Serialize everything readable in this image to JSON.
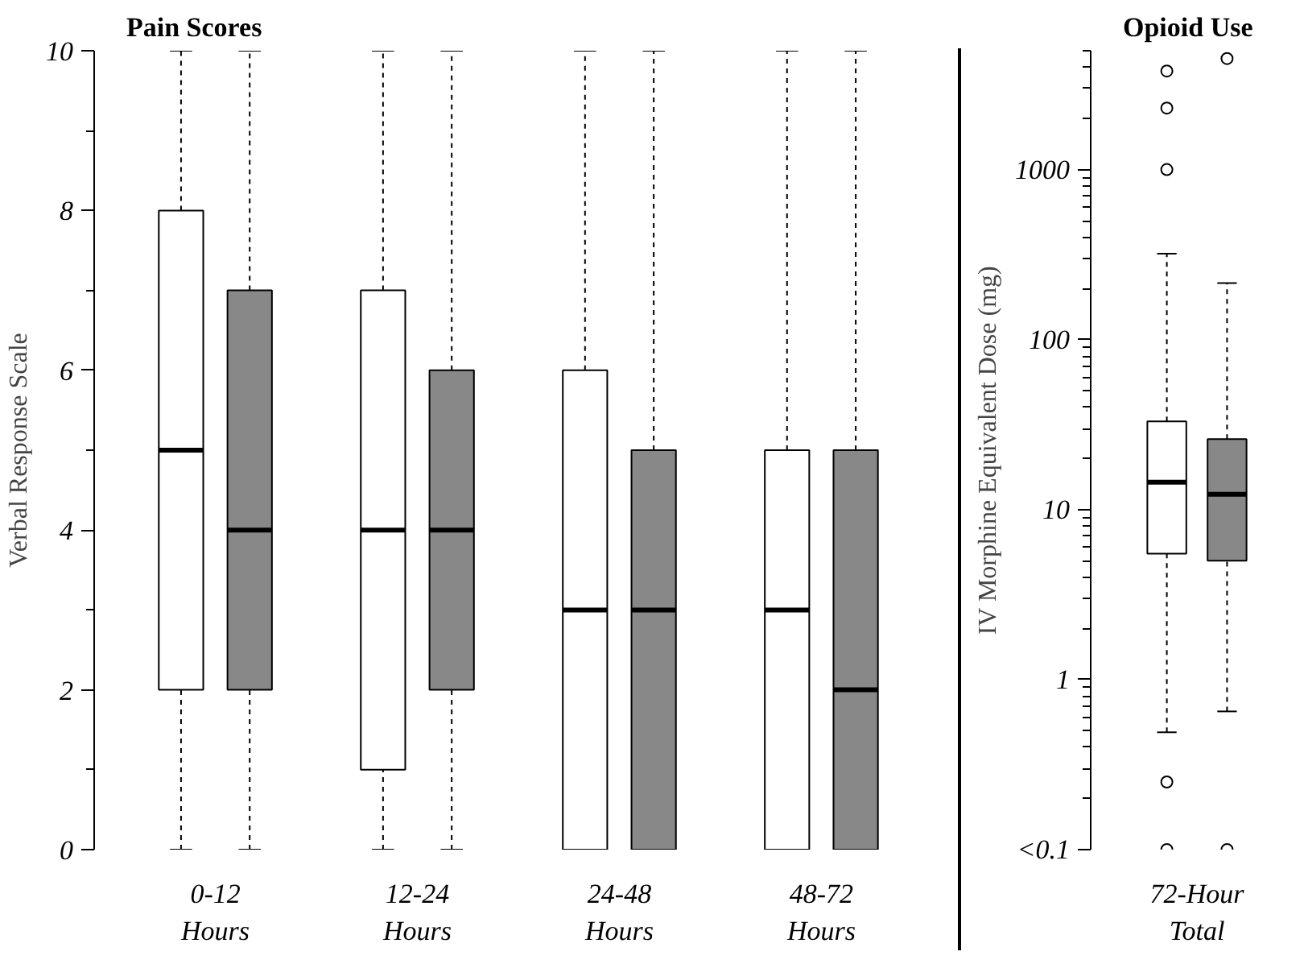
{
  "chart_data": [
    {
      "type": "box",
      "title": "Pain Scores",
      "ylabel": "Verbal Response Scale",
      "categories": [
        "0-12 Hours",
        "12-24 Hours",
        "24-48 Hours",
        "48-72 Hours"
      ],
      "ylim": [
        0,
        10
      ],
      "yticks": [
        0,
        2,
        4,
        6,
        8,
        10
      ],
      "grid": false,
      "series": [
        {
          "color": "#ffffff",
          "boxes": [
            {
              "low": 0,
              "q1": 2,
              "median": 5,
              "q3": 8,
              "high": 10
            },
            {
              "low": 0,
              "q1": 1,
              "median": 4,
              "q3": 7,
              "high": 10
            },
            {
              "low": 0,
              "q1": 0,
              "median": 3,
              "q3": 6,
              "high": 10
            },
            {
              "low": 0,
              "q1": 0,
              "median": 3,
              "q3": 5,
              "high": 10
            }
          ]
        },
        {
          "color": "#888888",
          "boxes": [
            {
              "low": 0,
              "q1": 2,
              "median": 4,
              "q3": 7,
              "high": 10
            },
            {
              "low": 0,
              "q1": 2,
              "median": 4,
              "q3": 6,
              "high": 10
            },
            {
              "low": 0,
              "q1": 0,
              "median": 3,
              "q3": 5,
              "high": 10
            },
            {
              "low": 0,
              "q1": 0,
              "median": 2,
              "q3": 5,
              "high": 10
            }
          ]
        }
      ]
    },
    {
      "type": "box",
      "title": "Opioid Use",
      "ylabel": "IV Morphine Equivalent Dose (mg)",
      "categories": [
        "72-Hour Total"
      ],
      "log": true,
      "ylim": [
        0.1,
        5000
      ],
      "yticks": [
        {
          "value": 0.1,
          "label": "<0.1"
        },
        1,
        10,
        100,
        1000
      ],
      "grid": false,
      "series": [
        {
          "color": "#ffffff",
          "boxes": [
            {
              "low": 0.49,
              "q1": 5.5,
              "median": 14.5,
              "q3": 33,
              "high": 320,
              "outliers": [
                3800,
                2300,
                1000,
                0.25,
                0.1
              ]
            }
          ]
        },
        {
          "color": "#888888",
          "boxes": [
            {
              "low": 0.65,
              "q1": 5.0,
              "median": 12.3,
              "q3": 26,
              "high": 215,
              "outliers": [
                4500,
                0.1
              ]
            }
          ]
        }
      ]
    }
  ]
}
